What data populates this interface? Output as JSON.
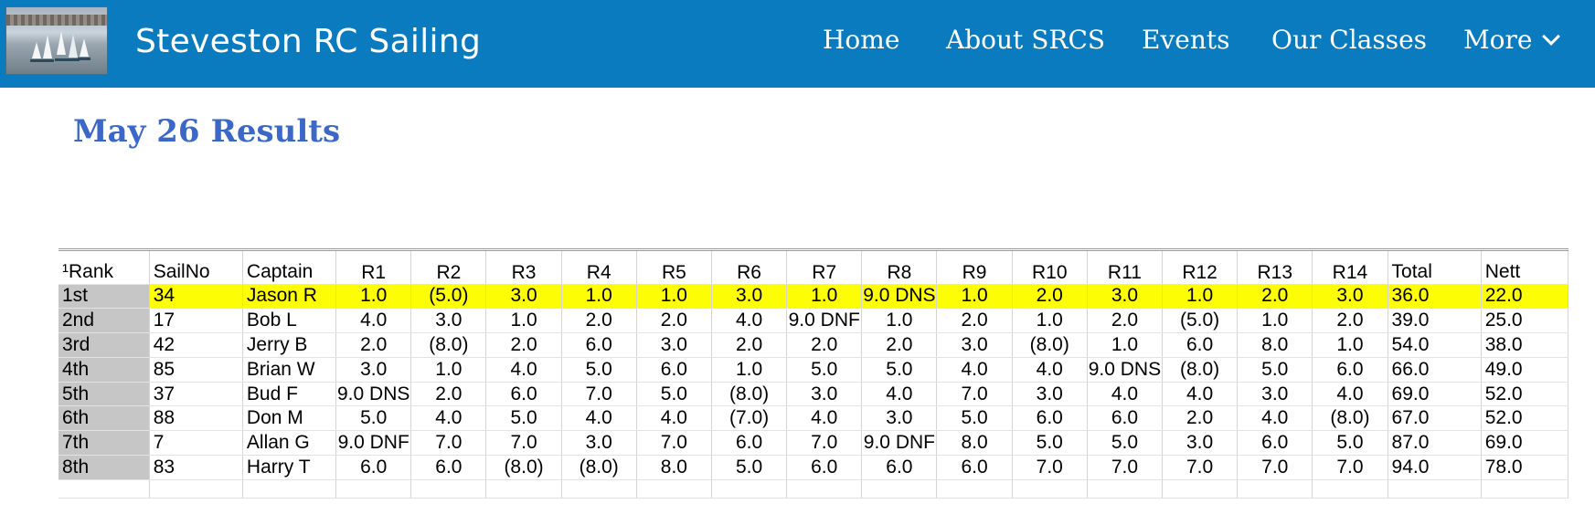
{
  "header": {
    "site_title": "Steveston RC Sailing",
    "nav": [
      {
        "label": "Home"
      },
      {
        "label": "About SRCS"
      },
      {
        "label": "Events"
      },
      {
        "label": "Our Classes"
      },
      {
        "label": "More"
      }
    ],
    "colors": {
      "bar": "#0a7bbf",
      "text": "#ffffff"
    }
  },
  "page": {
    "title_part1": "May 26",
    "title_part2": "Results",
    "title_color": "#3a67c8"
  },
  "results": {
    "highlight_color": "#fdfd06",
    "columns": [
      "¹Rank",
      "SailNo",
      "Captain",
      "R1",
      "R2",
      "R3",
      "R4",
      "R5",
      "R6",
      "R7",
      "R8",
      "R9",
      "R10",
      "R11",
      "R12",
      "R13",
      "R14",
      "Total",
      "Nett"
    ],
    "rows": [
      [
        "1st",
        "34",
        "Jason R",
        "1.0",
        "(5.0)",
        "3.0",
        "1.0",
        "1.0",
        "3.0",
        "1.0",
        "9.0 DNS",
        "1.0",
        "2.0",
        "3.0",
        "1.0",
        "2.0",
        "3.0",
        "36.0",
        "22.0"
      ],
      [
        "2nd",
        "17",
        "Bob L",
        "4.0",
        "3.0",
        "1.0",
        "2.0",
        "2.0",
        "4.0",
        "9.0 DNF",
        "1.0",
        "2.0",
        "1.0",
        "2.0",
        "(5.0)",
        "1.0",
        "2.0",
        "39.0",
        "25.0"
      ],
      [
        "3rd",
        "42",
        "Jerry B",
        "2.0",
        "(8.0)",
        "2.0",
        "6.0",
        "3.0",
        "2.0",
        "2.0",
        "2.0",
        "3.0",
        "(8.0)",
        "1.0",
        "6.0",
        "8.0",
        "1.0",
        "54.0",
        "38.0"
      ],
      [
        "4th",
        "85",
        "Brian W",
        "3.0",
        "1.0",
        "4.0",
        "5.0",
        "6.0",
        "1.0",
        "5.0",
        "5.0",
        "4.0",
        "4.0",
        "9.0 DNS",
        "(8.0)",
        "5.0",
        "6.0",
        "66.0",
        "49.0"
      ],
      [
        "5th",
        "37",
        "Bud F",
        "9.0 DNS",
        "2.0",
        "6.0",
        "7.0",
        "5.0",
        "(8.0)",
        "3.0",
        "4.0",
        "7.0",
        "3.0",
        "4.0",
        "4.0",
        "3.0",
        "4.0",
        "69.0",
        "52.0"
      ],
      [
        "6th",
        "88",
        "Don M",
        "5.0",
        "4.0",
        "5.0",
        "4.0",
        "4.0",
        "(7.0)",
        "4.0",
        "3.0",
        "5.0",
        "6.0",
        "6.0",
        "2.0",
        "4.0",
        "(8.0)",
        "67.0",
        "52.0"
      ],
      [
        "7th",
        "7",
        "Allan G",
        "9.0 DNF",
        "7.0",
        "7.0",
        "3.0",
        "7.0",
        "6.0",
        "7.0",
        "9.0 DNF",
        "8.0",
        "5.0",
        "5.0",
        "3.0",
        "6.0",
        "5.0",
        "87.0",
        "69.0"
      ],
      [
        "8th",
        "83",
        "Harry T",
        "6.0",
        "6.0",
        "(8.0)",
        "(8.0)",
        "8.0",
        "5.0",
        "6.0",
        "6.0",
        "6.0",
        "7.0",
        "7.0",
        "7.0",
        "7.0",
        "7.0",
        "94.0",
        "78.0"
      ]
    ]
  }
}
